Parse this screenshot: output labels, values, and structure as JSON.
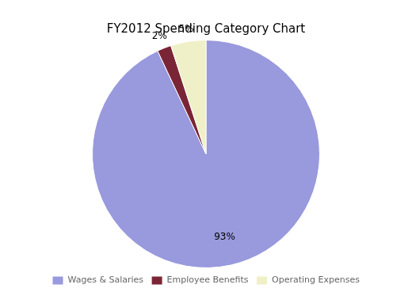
{
  "chart_data": {
    "type": "pie",
    "title": "FY2012 Spending Category Chart",
    "categories": [
      "Wages & Salaries",
      "Employee Benefits",
      "Operating Expenses"
    ],
    "values": [
      93,
      2,
      5
    ],
    "value_labels": [
      "93%",
      "2%",
      "5%"
    ],
    "colors": [
      "#9999dd",
      "#7a2535",
      "#f0f0c8"
    ],
    "data_labels": true,
    "legend": "bottom"
  }
}
